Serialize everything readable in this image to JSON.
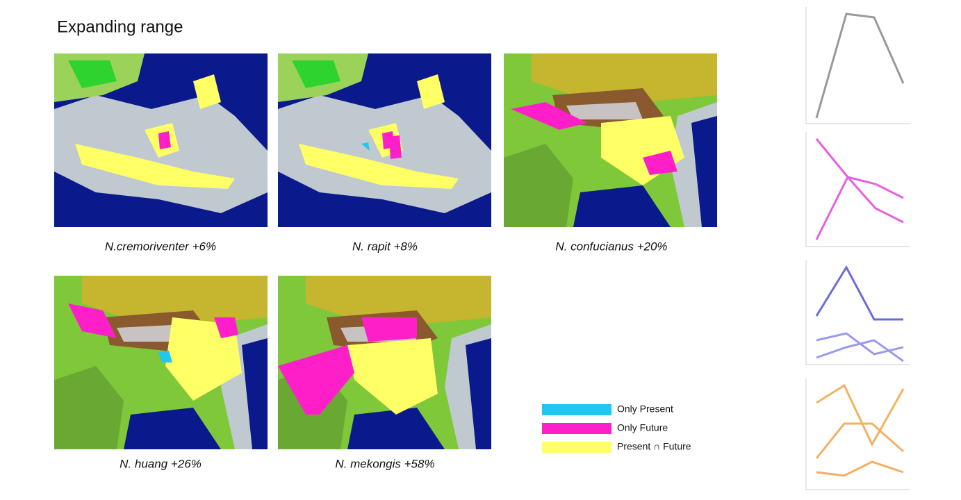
{
  "header": {
    "title": "Expanding range"
  },
  "maps": [
    {
      "caption": "N.cremoriventer +6%"
    },
    {
      "caption": "N. rapit +8%"
    },
    {
      "caption": "N. confucianus +20%"
    },
    {
      "caption": "N. huang +26%"
    },
    {
      "caption": "N. mekongis +58%"
    }
  ],
  "legend": [
    {
      "label": "Only Present",
      "color": "#1ec8f0"
    },
    {
      "label": "Only Future",
      "color": "#ff1fc8"
    },
    {
      "label": "Present ∩ Future",
      "color": "#ffff66"
    }
  ]
}
